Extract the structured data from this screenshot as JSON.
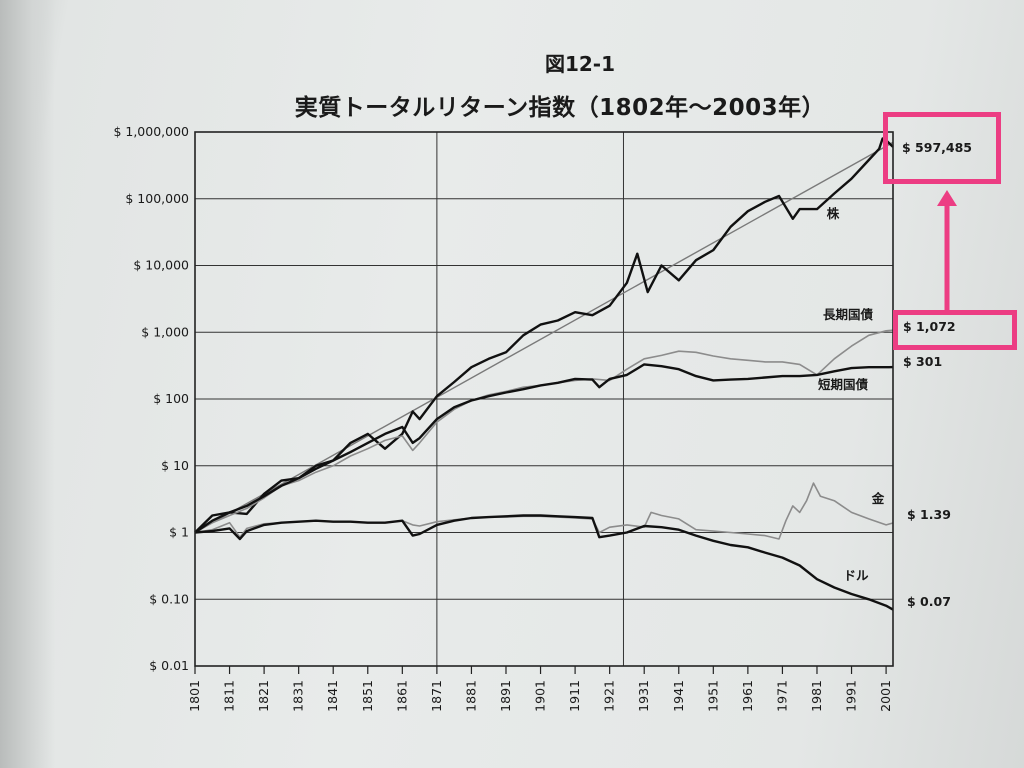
{
  "figure": {
    "label": "図12-1",
    "title": "実質トータルリターン指数（1802年〜2003年）"
  },
  "highlights": {
    "color": "#ec3d83",
    "boxes": [
      "stock-final-value",
      "long-bond-final-value"
    ],
    "arrow": "from long-bond-final-value up to stock-final-value"
  },
  "chart_data": {
    "type": "line",
    "title": "",
    "xlabel": "",
    "ylabel": "",
    "yscale": "log",
    "xlim": [
      1801,
      2003
    ],
    "ylim": [
      0.01,
      1000000
    ],
    "x_ticks": [
      "1801",
      "1811",
      "1821",
      "1831",
      "1841",
      "1851",
      "1861",
      "1871",
      "1881",
      "1891",
      "1901",
      "1911",
      "1921",
      "1931",
      "1941",
      "1951",
      "1961",
      "1971",
      "1981",
      "1991",
      "2001"
    ],
    "y_ticks": [
      {
        "value": 1000000,
        "label": "$ 1,000,000"
      },
      {
        "value": 100000,
        "label": "$ 100,000"
      },
      {
        "value": 10000,
        "label": "$ 10,000"
      },
      {
        "value": 1000,
        "label": "$ 1,000"
      },
      {
        "value": 100,
        "label": "$ 100"
      },
      {
        "value": 10,
        "label": "$ 10"
      },
      {
        "value": 1,
        "label": "$ 1"
      },
      {
        "value": 0.1,
        "label": "$ 0.10"
      },
      {
        "value": 0.01,
        "label": "$ 0.01"
      }
    ],
    "vertical_grid_years": [
      1871,
      1925
    ],
    "horizontal_grid": true,
    "trend_line": {
      "x": [
        1801,
        2003
      ],
      "y": [
        1,
        700000
      ],
      "color": "#7a7a7a"
    },
    "series": [
      {
        "name": "株",
        "end_label": "$ 597,485",
        "color": "#111111",
        "width": 2.4,
        "x": [
          1801,
          1806,
          1811,
          1816,
          1821,
          1826,
          1831,
          1836,
          1841,
          1846,
          1851,
          1856,
          1861,
          1864,
          1866,
          1871,
          1876,
          1881,
          1886,
          1891,
          1896,
          1901,
          1906,
          1911,
          1916,
          1921,
          1926,
          1929,
          1932,
          1936,
          1941,
          1946,
          1951,
          1956,
          1961,
          1966,
          1970,
          1974,
          1976,
          1981,
          1986,
          1991,
          1996,
          1999,
          2000,
          2001,
          2003
        ],
        "y": [
          1,
          1.8,
          2,
          1.9,
          3.8,
          6,
          6.5,
          10,
          12,
          22,
          30,
          18,
          30,
          65,
          50,
          110,
          180,
          300,
          400,
          500,
          900,
          1300,
          1500,
          2000,
          1800,
          2500,
          5500,
          15000,
          4000,
          10000,
          6000,
          12000,
          17000,
          38000,
          65000,
          90000,
          110000,
          50000,
          70000,
          70000,
          120000,
          200000,
          380000,
          560000,
          800000,
          750000,
          597485
        ]
      },
      {
        "name": "長期国債",
        "end_label": "$ 1,072",
        "color": "#8c8c8c",
        "width": 1.6,
        "x": [
          1801,
          1806,
          1811,
          1816,
          1821,
          1826,
          1831,
          1836,
          1841,
          1846,
          1851,
          1856,
          1861,
          1864,
          1866,
          1871,
          1876,
          1881,
          1886,
          1891,
          1896,
          1901,
          1906,
          1911,
          1916,
          1921,
          1926,
          1931,
          1936,
          1941,
          1946,
          1951,
          1956,
          1961,
          1966,
          1971,
          1976,
          1981,
          1986,
          1991,
          1996,
          2001,
          2003
        ],
        "y": [
          1,
          1.4,
          1.8,
          2.3,
          3.3,
          5,
          6,
          8,
          10,
          14,
          18,
          24,
          28,
          17,
          22,
          45,
          70,
          95,
          115,
          130,
          150,
          160,
          175,
          190,
          200,
          190,
          280,
          400,
          450,
          520,
          500,
          440,
          400,
          380,
          360,
          360,
          330,
          230,
          400,
          620,
          900,
          1050,
          1072
        ]
      },
      {
        "name": "短期国債",
        "end_label": "$ 301",
        "color": "#111111",
        "width": 2.4,
        "x": [
          1801,
          1806,
          1811,
          1816,
          1821,
          1826,
          1831,
          1836,
          1841,
          1846,
          1851,
          1856,
          1861,
          1864,
          1866,
          1871,
          1876,
          1881,
          1886,
          1891,
          1896,
          1901,
          1906,
          1911,
          1916,
          1918,
          1921,
          1926,
          1931,
          1936,
          1941,
          1946,
          1951,
          1956,
          1961,
          1966,
          1971,
          1976,
          1981,
          1986,
          1991,
          1996,
          2001,
          2003
        ],
        "y": [
          1,
          1.5,
          2,
          2.5,
          3.5,
          5,
          6.5,
          9,
          12,
          16,
          22,
          30,
          38,
          22,
          26,
          50,
          75,
          95,
          110,
          125,
          140,
          160,
          175,
          200,
          195,
          150,
          200,
          230,
          330,
          310,
          280,
          220,
          190,
          195,
          200,
          210,
          220,
          220,
          230,
          260,
          290,
          300,
          300,
          301
        ]
      },
      {
        "name": "金",
        "end_label": "$ 1.39",
        "color": "#8c8c8c",
        "width": 1.6,
        "x": [
          1801,
          1806,
          1811,
          1814,
          1816,
          1821,
          1826,
          1831,
          1836,
          1841,
          1846,
          1851,
          1856,
          1861,
          1864,
          1866,
          1871,
          1876,
          1881,
          1886,
          1891,
          1896,
          1901,
          1906,
          1911,
          1916,
          1918,
          1921,
          1926,
          1931,
          1933,
          1936,
          1941,
          1946,
          1951,
          1956,
          1961,
          1966,
          1970,
          1972,
          1974,
          1976,
          1978,
          1980,
          1982,
          1986,
          1991,
          1996,
          2001,
          2003
        ],
        "y": [
          1,
          1.1,
          1.4,
          0.85,
          1.15,
          1.35,
          1.4,
          1.45,
          1.5,
          1.45,
          1.45,
          1.4,
          1.4,
          1.5,
          1.3,
          1.25,
          1.45,
          1.55,
          1.65,
          1.7,
          1.7,
          1.75,
          1.75,
          1.7,
          1.65,
          1.6,
          1.0,
          1.2,
          1.3,
          1.2,
          2.0,
          1.8,
          1.6,
          1.1,
          1.05,
          1.0,
          0.95,
          0.9,
          0.8,
          1.5,
          2.5,
          2.0,
          3.0,
          5.5,
          3.5,
          3.0,
          2.0,
          1.6,
          1.3,
          1.39
        ]
      },
      {
        "name": "ドル",
        "end_label": "$ 0.07",
        "color": "#111111",
        "width": 2.4,
        "x": [
          1801,
          1806,
          1811,
          1814,
          1816,
          1821,
          1826,
          1831,
          1836,
          1841,
          1846,
          1851,
          1856,
          1861,
          1864,
          1866,
          1871,
          1876,
          1881,
          1886,
          1891,
          1896,
          1901,
          1906,
          1911,
          1916,
          1918,
          1921,
          1926,
          1931,
          1936,
          1941,
          1946,
          1951,
          1956,
          1961,
          1966,
          1971,
          1976,
          1981,
          1986,
          1991,
          1996,
          2001,
          2003
        ],
        "y": [
          1,
          1.05,
          1.15,
          0.8,
          1.05,
          1.3,
          1.4,
          1.45,
          1.5,
          1.45,
          1.45,
          1.4,
          1.4,
          1.5,
          0.9,
          0.95,
          1.3,
          1.5,
          1.65,
          1.7,
          1.75,
          1.8,
          1.8,
          1.75,
          1.7,
          1.65,
          0.85,
          0.9,
          1.0,
          1.25,
          1.2,
          1.1,
          0.9,
          0.75,
          0.65,
          0.6,
          0.5,
          0.42,
          0.32,
          0.2,
          0.15,
          0.12,
          0.1,
          0.08,
          0.07
        ]
      }
    ]
  }
}
